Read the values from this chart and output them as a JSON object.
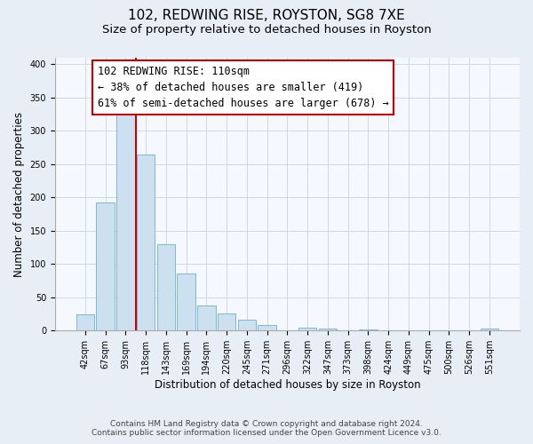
{
  "title": "102, REDWING RISE, ROYSTON, SG8 7XE",
  "subtitle": "Size of property relative to detached houses in Royston",
  "xlabel": "Distribution of detached houses by size in Royston",
  "ylabel": "Number of detached properties",
  "footnote1": "Contains HM Land Registry data © Crown copyright and database right 2024.",
  "footnote2": "Contains public sector information licensed under the Open Government Licence v3.0.",
  "bar_labels": [
    "42sqm",
    "67sqm",
    "93sqm",
    "118sqm",
    "143sqm",
    "169sqm",
    "194sqm",
    "220sqm",
    "245sqm",
    "271sqm",
    "296sqm",
    "322sqm",
    "347sqm",
    "373sqm",
    "398sqm",
    "424sqm",
    "449sqm",
    "475sqm",
    "500sqm",
    "526sqm",
    "551sqm"
  ],
  "bar_values": [
    25,
    193,
    330,
    265,
    130,
    86,
    38,
    26,
    17,
    8,
    0,
    5,
    3,
    0,
    2,
    0,
    0,
    0,
    0,
    0,
    3
  ],
  "bar_color": "#cce0f0",
  "bar_edge_color": "#7ab8d9",
  "vline_x_index": 3,
  "vline_color": "#cc0000",
  "annotation_text": "102 REDWING RISE: 110sqm\n← 38% of detached houses are smaller (419)\n61% of semi-detached houses are larger (678) →",
  "annotation_box_color": "white",
  "annotation_box_edge_color": "#cc0000",
  "ylim": [
    0,
    410
  ],
  "yticks": [
    0,
    50,
    100,
    150,
    200,
    250,
    300,
    350,
    400
  ],
  "background_color": "#e8eef5",
  "plot_background_color": "#f5f8fc",
  "title_fontsize": 11,
  "subtitle_fontsize": 9.5,
  "annotation_fontsize": 8.5,
  "tick_fontsize": 7,
  "label_fontsize": 8.5,
  "footnote_fontsize": 6.5,
  "grid_color": "#d0d8e4"
}
